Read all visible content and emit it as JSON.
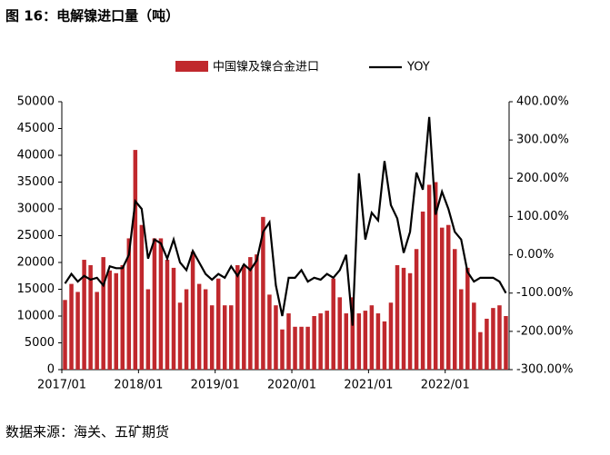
{
  "chart_data": {
    "type": "bar-line",
    "title": "图 16：电解镍进口量（吨）",
    "source": "数据来源：海关、五矿期货",
    "categories": [
      "2017/01",
      null,
      null,
      null,
      null,
      null,
      null,
      null,
      null,
      null,
      null,
      null,
      "2018/01",
      null,
      null,
      null,
      null,
      null,
      null,
      null,
      null,
      null,
      null,
      null,
      "2019/01",
      null,
      null,
      null,
      null,
      null,
      null,
      null,
      null,
      null,
      null,
      null,
      "2020/01",
      null,
      null,
      null,
      null,
      null,
      null,
      null,
      null,
      null,
      null,
      null,
      "2021/01",
      null,
      null,
      null,
      null,
      null,
      null,
      null,
      null,
      null,
      null,
      null,
      "2022/01",
      null,
      null,
      null,
      null,
      null,
      null,
      null,
      null,
      null
    ],
    "series": [
      {
        "name": "中国镍及镍合金进口",
        "color": "#c0282d",
        "axis": "y",
        "values": [
          13000,
          16000,
          14500,
          20500,
          19500,
          14500,
          21000,
          18500,
          18000,
          19500,
          24500,
          41000,
          27000,
          15000,
          24500,
          24500,
          20500,
          19000,
          12500,
          15000,
          22000,
          16000,
          15000,
          12000,
          17000,
          12000,
          12000,
          19500,
          19500,
          21000,
          21500,
          28500,
          14000,
          12000,
          7500,
          10500,
          8000,
          8000,
          8000,
          10000,
          10500,
          11000,
          17000,
          13500,
          10500,
          13500,
          10500,
          11000,
          12000,
          10500,
          9000,
          12500,
          19500,
          19000,
          18000,
          22500,
          29500,
          34500,
          35000,
          26500,
          27000,
          22500,
          15000,
          19000,
          12500,
          7000,
          9500,
          11500,
          12000,
          10000
        ]
      },
      {
        "name": "YOY",
        "color": "#000000",
        "axis": "y2",
        "values": [
          -75,
          -50,
          -70,
          -55,
          -65,
          -60,
          -80,
          -30,
          -35,
          -35,
          0,
          140,
          120,
          -10,
          40,
          30,
          -10,
          40,
          -20,
          -40,
          10,
          -20,
          -50,
          -65,
          -50,
          -60,
          -30,
          -55,
          -25,
          -40,
          -15,
          60,
          85,
          -80,
          -160,
          -60,
          -60,
          -40,
          -70,
          -60,
          -65,
          -50,
          -60,
          -40,
          0,
          -185,
          213,
          40,
          110,
          90,
          245,
          130,
          95,
          5,
          60,
          215,
          170,
          360,
          105,
          165,
          120,
          60,
          40,
          -45,
          -70,
          -60,
          -60,
          -60,
          -70,
          -100
        ]
      }
    ],
    "ylim": [
      0,
      50000
    ],
    "yticks": [
      0,
      5000,
      10000,
      15000,
      20000,
      25000,
      30000,
      35000,
      40000,
      45000,
      50000
    ],
    "y2lim": [
      -300,
      400
    ],
    "y2ticks": [
      {
        "value": -300,
        "label": "-300.00%"
      },
      {
        "value": -200,
        "label": "-200.00%"
      },
      {
        "value": -100,
        "label": "-100.00%"
      },
      {
        "value": 0,
        "label": "0.00%"
      },
      {
        "value": 100,
        "label": "100.00%"
      },
      {
        "value": 200,
        "label": "200.00%"
      },
      {
        "value": 300,
        "label": "300.00%"
      },
      {
        "value": 400,
        "label": "400.00%"
      }
    ]
  }
}
